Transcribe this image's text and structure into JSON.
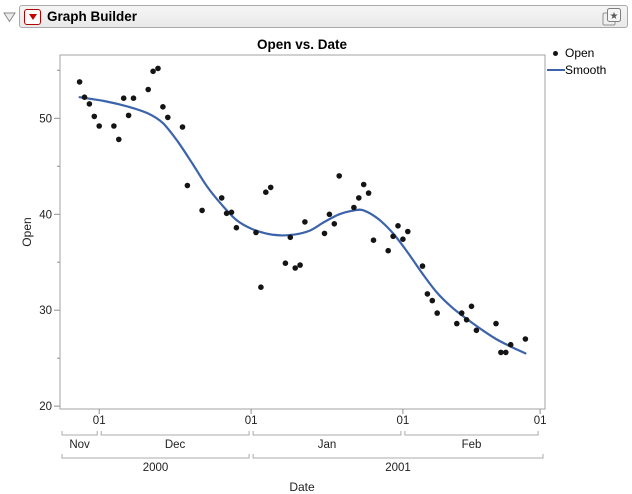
{
  "window": {
    "title": "Graph Builder",
    "disclosure_icon": "outline-disclosure-triangle",
    "menu_button_icon": "red-triangle-menu",
    "corner_button_icon": "layered-pages-star"
  },
  "chart_data": {
    "type": "scatter",
    "title": "Open vs. Date",
    "xlabel": "Date",
    "ylabel": "Open",
    "legend": [
      {
        "label": "Open",
        "marker": "dot"
      },
      {
        "label": "Smooth",
        "marker": "line"
      }
    ],
    "colors": {
      "smooth_line": "#3d64ab",
      "points": "#141414",
      "frame": "#a3a3a3",
      "ticks": "#8f8f8f",
      "brackets": "#ababab"
    },
    "x_axis": {
      "start": "2000-11-23",
      "end": "2001-03-02",
      "day_ticks": [
        {
          "date": "2000-12-01",
          "label": "01"
        },
        {
          "date": "2001-01-01",
          "label": "01"
        },
        {
          "date": "2001-02-01",
          "label": "01"
        },
        {
          "date": "2001-03-01",
          "label": "01"
        }
      ],
      "month_spans": [
        {
          "label": "Nov",
          "start": "2000-11-23",
          "end": "2000-12-01"
        },
        {
          "label": "Dec",
          "start": "2000-12-01",
          "end": "2001-01-01"
        },
        {
          "label": "Jan",
          "start": "2001-01-01",
          "end": "2001-02-01"
        },
        {
          "label": "Feb",
          "start": "2001-02-01",
          "end": "2001-03-01"
        }
      ],
      "year_spans": [
        {
          "label": "2000",
          "start": "2000-11-23",
          "end": "2001-01-01"
        },
        {
          "label": "2001",
          "start": "2001-01-01",
          "end": "2001-03-02"
        }
      ]
    },
    "y_axis": {
      "range": [
        19.7,
        56.6
      ],
      "major_ticks": [
        20,
        30,
        40,
        50
      ],
      "minor_ticks": [
        25,
        35,
        45,
        55
      ]
    },
    "points": [
      [
        "2000-11-27",
        53.8
      ],
      [
        "2000-11-28",
        52.2
      ],
      [
        "2000-11-29",
        51.5
      ],
      [
        "2000-11-30",
        50.2
      ],
      [
        "2000-12-01",
        49.2
      ],
      [
        "2000-12-04",
        49.2
      ],
      [
        "2000-12-05",
        47.8
      ],
      [
        "2000-12-06",
        52.1
      ],
      [
        "2000-12-07",
        50.3
      ],
      [
        "2000-12-08",
        52.1
      ],
      [
        "2000-12-11",
        53.0
      ],
      [
        "2000-12-12",
        54.9
      ],
      [
        "2000-12-13",
        55.2
      ],
      [
        "2000-12-14",
        51.2
      ],
      [
        "2000-12-15",
        50.1
      ],
      [
        "2000-12-18",
        49.1
      ],
      [
        "2000-12-19",
        43.0
      ],
      [
        "2000-12-22",
        40.4
      ],
      [
        "2000-12-26",
        41.7
      ],
      [
        "2000-12-27",
        40.1
      ],
      [
        "2000-12-28",
        40.2
      ],
      [
        "2000-12-29",
        38.6
      ],
      [
        "2001-01-02",
        38.1
      ],
      [
        "2001-01-03",
        32.4
      ],
      [
        "2001-01-04",
        42.3
      ],
      [
        "2001-01-05",
        42.8
      ],
      [
        "2001-01-08",
        34.9
      ],
      [
        "2001-01-09",
        37.6
      ],
      [
        "2001-01-10",
        34.4
      ],
      [
        "2001-01-11",
        34.7
      ],
      [
        "2001-01-12",
        39.2
      ],
      [
        "2001-01-16",
        38.0
      ],
      [
        "2001-01-17",
        40.0
      ],
      [
        "2001-01-18",
        39.0
      ],
      [
        "2001-01-19",
        44.0
      ],
      [
        "2001-01-22",
        40.7
      ],
      [
        "2001-01-23",
        41.7
      ],
      [
        "2001-01-24",
        43.1
      ],
      [
        "2001-01-25",
        42.2
      ],
      [
        "2001-01-26",
        37.3
      ],
      [
        "2001-01-29",
        36.2
      ],
      [
        "2001-01-30",
        37.7
      ],
      [
        "2001-01-31",
        38.8
      ],
      [
        "2001-02-01",
        37.4
      ],
      [
        "2001-02-02",
        38.2
      ],
      [
        "2001-02-05",
        34.6
      ],
      [
        "2001-02-06",
        31.7
      ],
      [
        "2001-02-07",
        31.0
      ],
      [
        "2001-02-08",
        29.7
      ],
      [
        "2001-02-12",
        28.6
      ],
      [
        "2001-02-13",
        29.7
      ],
      [
        "2001-02-14",
        29.0
      ],
      [
        "2001-02-15",
        30.4
      ],
      [
        "2001-02-16",
        27.9
      ],
      [
        "2001-02-20",
        28.6
      ],
      [
        "2001-02-21",
        25.6
      ],
      [
        "2001-02-22",
        25.6
      ],
      [
        "2001-02-23",
        26.4
      ],
      [
        "2001-02-26",
        27.0
      ]
    ],
    "smooth": [
      [
        "2000-11-27",
        52.2
      ],
      [
        "2000-12-02",
        51.8
      ],
      [
        "2000-12-07",
        51.2
      ],
      [
        "2000-12-11",
        50.5
      ],
      [
        "2000-12-14",
        49.5
      ],
      [
        "2000-12-17",
        47.6
      ],
      [
        "2000-12-20",
        45.3
      ],
      [
        "2000-12-23",
        42.9
      ],
      [
        "2000-12-26",
        41.0
      ],
      [
        "2000-12-29",
        39.4
      ],
      [
        "2001-01-01",
        38.5
      ],
      [
        "2001-01-04",
        38.0
      ],
      [
        "2001-01-07",
        37.8
      ],
      [
        "2001-01-10",
        37.9
      ],
      [
        "2001-01-13",
        38.3
      ],
      [
        "2001-01-16",
        39.2
      ],
      [
        "2001-01-19",
        40.0
      ],
      [
        "2001-01-22",
        40.4
      ],
      [
        "2001-01-24",
        40.4
      ],
      [
        "2001-01-27",
        39.5
      ],
      [
        "2001-01-30",
        38.0
      ],
      [
        "2001-02-02",
        36.0
      ],
      [
        "2001-02-05",
        33.8
      ],
      [
        "2001-02-08",
        31.8
      ],
      [
        "2001-02-11",
        30.3
      ],
      [
        "2001-02-14",
        29.1
      ],
      [
        "2001-02-17",
        28.0
      ],
      [
        "2001-02-20",
        27.0
      ],
      [
        "2001-02-23",
        26.2
      ],
      [
        "2001-02-26",
        25.5
      ]
    ]
  }
}
